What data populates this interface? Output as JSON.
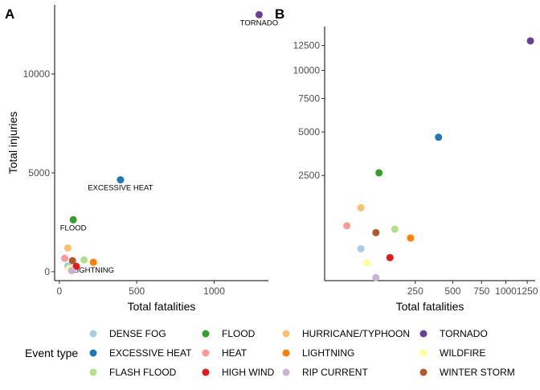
{
  "chart_data": [
    {
      "panel": "A",
      "type": "scatter",
      "xlabel": "Total fatalities",
      "ylabel": "Total injuries",
      "xlim": [
        -30,
        1350
      ],
      "ylim": [
        -450,
        13500
      ],
      "xticks": [
        0,
        500,
        1000
      ],
      "yticks": [
        0,
        5000,
        10000
      ],
      "points": [
        {
          "event": "TORNADO",
          "x": 1290,
          "y": 13000,
          "label": "TORNADO"
        },
        {
          "event": "EXCESSIVE HEAT",
          "x": 395,
          "y": 4650,
          "label": "EXCESSIVE HEAT"
        },
        {
          "event": "FLOOD",
          "x": 90,
          "y": 2630,
          "label": "FLOOD"
        },
        {
          "event": "LIGHTNING",
          "x": 220,
          "y": 480,
          "label": "LIGHTNING"
        },
        {
          "event": "HURRICANE/TYPHOON",
          "x": 55,
          "y": 1200,
          "label": ""
        },
        {
          "event": "HEAT",
          "x": 35,
          "y": 680,
          "label": ""
        },
        {
          "event": "FLASH FLOOD",
          "x": 160,
          "y": 600,
          "label": ""
        },
        {
          "event": "WINTER STORM",
          "x": 85,
          "y": 560,
          "label": ""
        },
        {
          "event": "HIGH WIND",
          "x": 110,
          "y": 270,
          "label": ""
        },
        {
          "event": "DENSE FOG",
          "x": 55,
          "y": 300,
          "label": ""
        },
        {
          "event": "WILDFIRE",
          "x": 65,
          "y": 160,
          "label": ""
        },
        {
          "event": "RIP CURRENT",
          "x": 80,
          "y": 55,
          "label": ""
        }
      ]
    },
    {
      "panel": "B",
      "type": "scatter",
      "xlabel": "Total fatalities",
      "scale": "sqrt",
      "xlim": [
        0,
        1350
      ],
      "ylim": [
        0,
        14600
      ],
      "xticks": [
        250,
        500,
        750,
        1000,
        1250
      ],
      "yticks": [
        2500,
        5000,
        7500,
        10000,
        12500
      ],
      "points": [
        {
          "event": "TORNADO",
          "x": 1290,
          "y": 13000
        },
        {
          "event": "EXCESSIVE HEAT",
          "x": 395,
          "y": 4650
        },
        {
          "event": "FLOOD",
          "x": 90,
          "y": 2630
        },
        {
          "event": "HURRICANE/TYPHOON",
          "x": 40,
          "y": 1200
        },
        {
          "event": "HEAT",
          "x": 15,
          "y": 680
        },
        {
          "event": "FLASH FLOOD",
          "x": 150,
          "y": 600
        },
        {
          "event": "WINTER STORM",
          "x": 80,
          "y": 520
        },
        {
          "event": "LIGHTNING",
          "x": 225,
          "y": 410
        },
        {
          "event": "DENSE FOG",
          "x": 40,
          "y": 230
        },
        {
          "event": "HIGH WIND",
          "x": 130,
          "y": 120
        },
        {
          "event": "WILDFIRE",
          "x": 55,
          "y": 70
        },
        {
          "event": "RIP CURRENT",
          "x": 80,
          "y": 2
        }
      ]
    }
  ],
  "panel_tags": {
    "a": "A",
    "b": "B"
  },
  "legend": {
    "title": "Event type",
    "items": [
      {
        "event": "DENSE FOG",
        "color": "#a6cee3"
      },
      {
        "event": "EXCESSIVE HEAT",
        "color": "#1f78b4"
      },
      {
        "event": "FLASH FLOOD",
        "color": "#b2df8a"
      },
      {
        "event": "FLOOD",
        "color": "#33a02c"
      },
      {
        "event": "HEAT",
        "color": "#fb9a99"
      },
      {
        "event": "HIGH WIND",
        "color": "#e31a1c"
      },
      {
        "event": "HURRICANE/TYPHOON",
        "color": "#fdbf6f"
      },
      {
        "event": "LIGHTNING",
        "color": "#ff7f00"
      },
      {
        "event": "RIP CURRENT",
        "color": "#cab2d6"
      },
      {
        "event": "TORNADO",
        "color": "#6a3d9a"
      },
      {
        "event": "WILDFIRE",
        "color": "#ffff99"
      },
      {
        "event": "WINTER STORM",
        "color": "#b15928"
      }
    ]
  }
}
